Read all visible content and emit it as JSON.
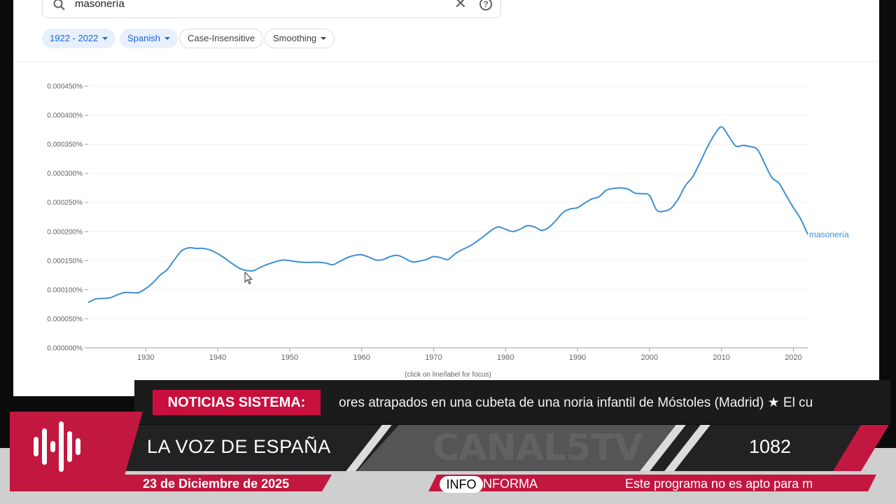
{
  "search": {
    "query": "masonería",
    "clear_symbol": "✕",
    "help_symbol": "?"
  },
  "filters": {
    "range": "1922 - 2022",
    "corpus": "Spanish",
    "case": "Case-Insensitive",
    "smoothing": "Smoothing"
  },
  "chart_data": {
    "type": "line",
    "x_range": [
      1922,
      2022
    ],
    "ylim": [
      0,
      0.00045
    ],
    "y_unit": "%",
    "y_ticks": [
      "0.000000%",
      "0.000050%",
      "0.000100%",
      "0.000150%",
      "0.000200%",
      "0.000250%",
      "0.000300%",
      "0.000350%",
      "0.000400%",
      "0.000450%"
    ],
    "x_ticks": [
      "1930",
      "1940",
      "1950",
      "1960",
      "1970",
      "1980",
      "1990",
      "2000",
      "2010",
      "2020"
    ],
    "hint": "(click on line/label for focus)",
    "series": [
      {
        "name": "masonería",
        "color": "#3f8fd2",
        "x": [
          1922,
          1923,
          1924,
          1925,
          1926,
          1927,
          1928,
          1929,
          1930,
          1931,
          1932,
          1933,
          1934,
          1935,
          1936,
          1937,
          1938,
          1939,
          1940,
          1941,
          1942,
          1943,
          1944,
          1945,
          1946,
          1947,
          1948,
          1949,
          1950,
          1951,
          1952,
          1953,
          1954,
          1955,
          1956,
          1957,
          1958,
          1959,
          1960,
          1961,
          1962,
          1963,
          1964,
          1965,
          1966,
          1967,
          1968,
          1969,
          1970,
          1971,
          1972,
          1973,
          1974,
          1975,
          1976,
          1977,
          1978,
          1979,
          1980,
          1981,
          1982,
          1983,
          1984,
          1985,
          1986,
          1987,
          1988,
          1989,
          1990,
          1991,
          1992,
          1993,
          1994,
          1995,
          1996,
          1997,
          1998,
          1999,
          2000,
          2001,
          2002,
          2003,
          2004,
          2005,
          2006,
          2007,
          2008,
          2009,
          2010,
          2011,
          2012,
          2013,
          2014,
          2015,
          2016,
          2017,
          2018,
          2019,
          2020,
          2021,
          2022
        ],
        "values": [
          7.8e-05,
          8.4e-05,
          8.5e-05,
          8.6e-05,
          9.1e-05,
          9.5e-05,
          9.5e-05,
          9.5e-05,
          0.000102,
          0.000112,
          0.000125,
          0.000135,
          0.000152,
          0.000167,
          0.000172,
          0.000171,
          0.000171,
          0.000168,
          0.000162,
          0.000154,
          0.000145,
          0.000137,
          0.000133,
          0.000133,
          0.000139,
          0.000144,
          0.000148,
          0.000151,
          0.00015,
          0.000148,
          0.000147,
          0.000147,
          0.000147,
          0.000146,
          0.000143,
          0.000149,
          0.000155,
          0.000159,
          0.00016,
          0.000156,
          0.000151,
          0.000152,
          0.000157,
          0.000159,
          0.000154,
          0.000148,
          0.000149,
          0.000152,
          0.000157,
          0.000155,
          0.000152,
          0.000162,
          0.000169,
          0.000175,
          0.000183,
          0.000192,
          0.000202,
          0.000208,
          0.000204,
          0.0002,
          0.000204,
          0.00021,
          0.000208,
          0.000202,
          0.000207,
          0.000219,
          0.000233,
          0.000239,
          0.000241,
          0.000249,
          0.000256,
          0.00026,
          0.000271,
          0.000274,
          0.000275,
          0.000273,
          0.000266,
          0.000265,
          0.000262,
          0.000237,
          0.000235,
          0.00024,
          0.000256,
          0.000279,
          0.000294,
          0.000318,
          0.000344,
          0.000366,
          0.00038,
          0.000364,
          0.000347,
          0.000348,
          0.000346,
          0.000341,
          0.000317,
          0.000293,
          0.000283,
          0.000262,
          0.000241,
          0.000222,
          0.000195
        ]
      }
    ]
  },
  "ticker": {
    "label": "NOTICIAS SISTEMA:",
    "text": "ores atrapados en una cubeta de una noria infantil de Móstoles (Madrid) ★ El cu"
  },
  "broadcast": {
    "station": "LA VOZ DE ESPAÑA",
    "watermark": "CANAL5TV",
    "number": "1082",
    "date": "23 de Diciembre de 2025",
    "info": "INFO",
    "informa": "NFORMA",
    "disclaimer": "Este programa no es apto para m",
    "accent": "#c2173f"
  }
}
